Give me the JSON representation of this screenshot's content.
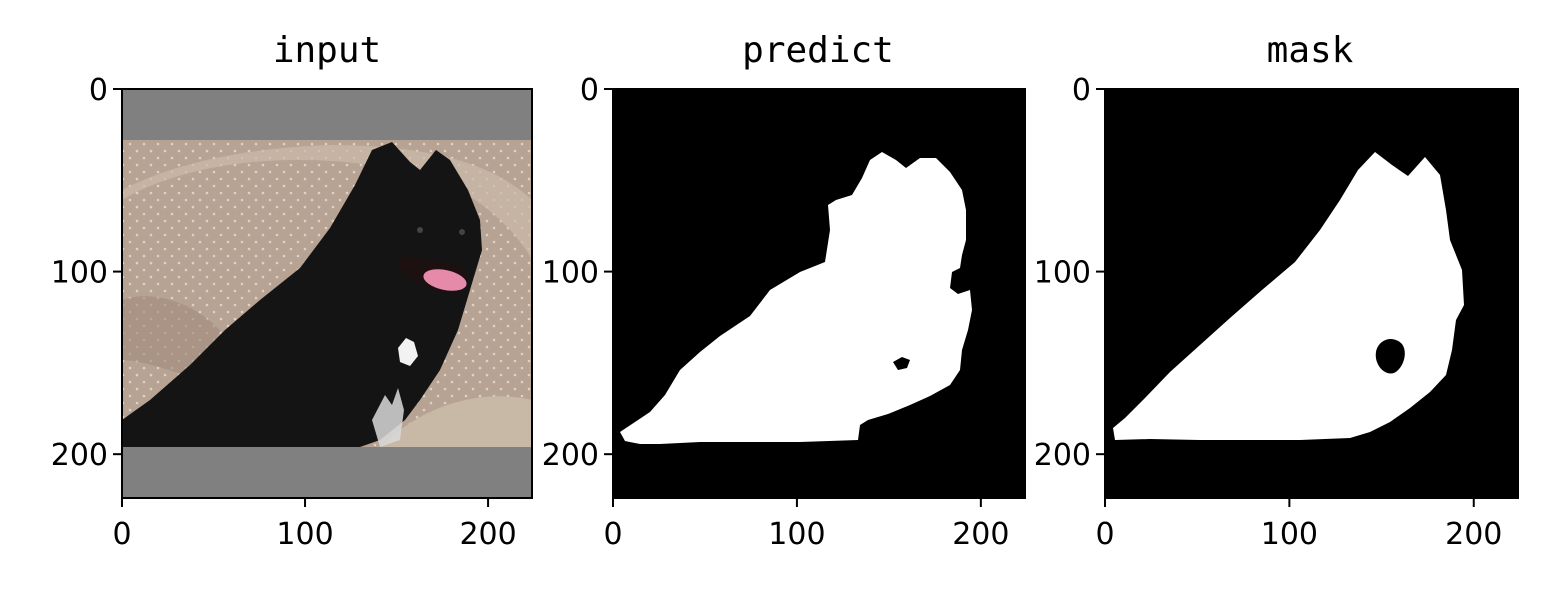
{
  "chart_data": [
    {
      "type": "image",
      "title": "input",
      "xlim": [
        0,
        224
      ],
      "ylim": [
        224,
        0
      ],
      "xticks": [
        0,
        100,
        200
      ],
      "yticks": [
        0,
        100,
        200
      ],
      "content": "photo of a black dog sitting on a beige sofa, gray letterbox bars top and bottom"
    },
    {
      "type": "image",
      "title": "predict",
      "xlim": [
        0,
        224
      ],
      "ylim": [
        224,
        0
      ],
      "xticks": [
        0,
        100,
        200
      ],
      "yticks": [
        0,
        100,
        200
      ],
      "content": "binary segmentation mask (white = dog, black = background)"
    },
    {
      "type": "image",
      "title": "mask",
      "xlim": [
        0,
        224
      ],
      "ylim": [
        224,
        0
      ],
      "xticks": [
        0,
        100,
        200
      ],
      "yticks": [
        0,
        100,
        200
      ],
      "content": "binary ground-truth mask (white = dog, black = background)"
    }
  ],
  "colors": {
    "letterbox": "#808080",
    "sofa": "#b9a595",
    "dog": "#111111",
    "mask_fg": "#ffffff",
    "mask_bg": "#000000"
  }
}
